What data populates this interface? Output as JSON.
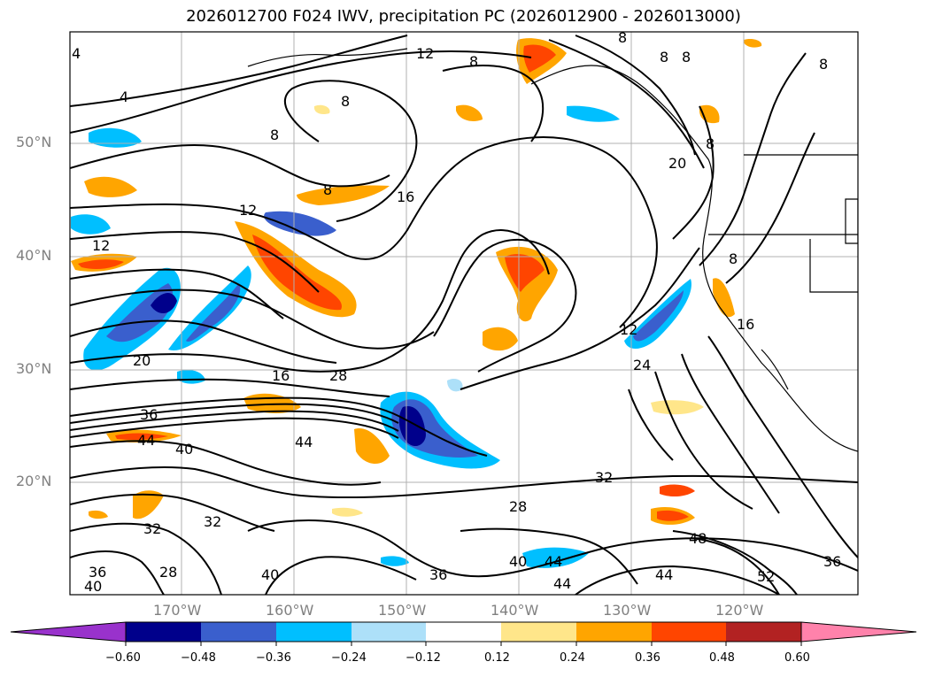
{
  "title": "2026012700 F024 IWV, precipitation PC (2026012900 - 2026013000)",
  "map": {
    "lat_labels": [
      "50°N",
      "40°N",
      "30°N",
      "20°N"
    ],
    "lon_labels": [
      "170°W",
      "160°W",
      "150°W",
      "140°W",
      "130°W",
      "120°W"
    ],
    "contour_labels": [
      "4",
      "8",
      "12",
      "16",
      "20",
      "24",
      "28",
      "32",
      "36",
      "40",
      "44",
      "48",
      "52"
    ]
  },
  "colorbar": {
    "ticks": [
      "−0.60",
      "−0.48",
      "−0.36",
      "−0.24",
      "−0.12",
      "0.12",
      "0.24",
      "0.36",
      "0.48",
      "0.60"
    ],
    "colors": [
      "#9932CC",
      "#00008B",
      "#3A5FCD",
      "#00BFFF",
      "#ADE0F9",
      "#FFFFFF",
      "#FFE68A",
      "#FFA500",
      "#FF4500",
      "#B22222",
      "#FF82AB"
    ]
  }
}
